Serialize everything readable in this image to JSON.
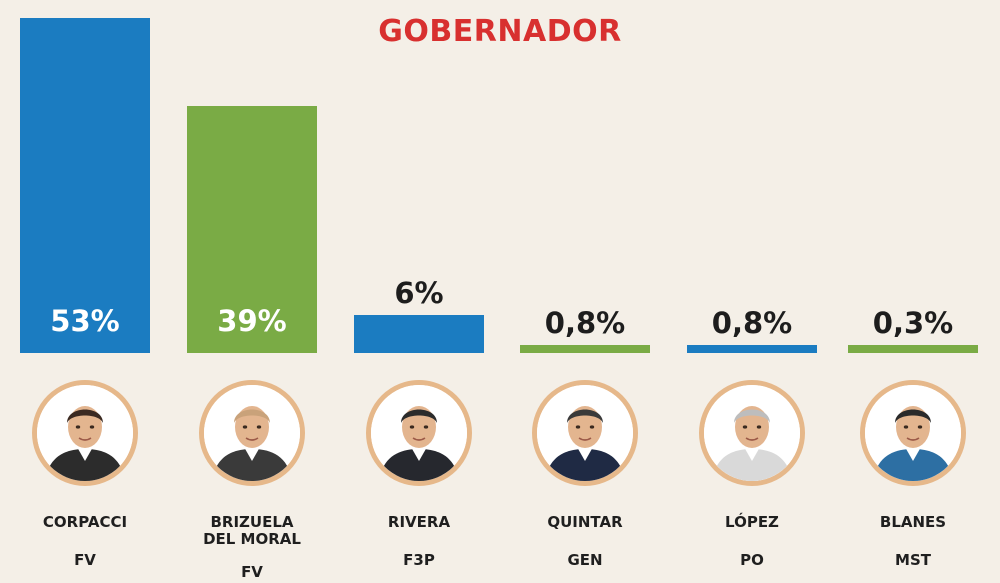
{
  "chart_data": {
    "type": "bar",
    "title": "GOBERNADOR",
    "ylim": [
      0,
      53
    ],
    "categories": [
      "CORPACCI",
      "BRIZUELA DEL MORAL",
      "RIVERA",
      "QUINTAR",
      "LÓPEZ",
      "BLANES"
    ],
    "parties": [
      "FV",
      "FV",
      "F3P",
      "GEN",
      "PO",
      "MST"
    ],
    "values": [
      53,
      39,
      6,
      0.8,
      0.8,
      0.3
    ],
    "value_labels": [
      "53%",
      "39%",
      "6%",
      "0,8%",
      "0,8%",
      "0,3%"
    ],
    "bar_colors": [
      "#1b7cc1",
      "#7aab45",
      "#1b7cc1",
      "#7aab45",
      "#1b7cc1",
      "#7aab45"
    ],
    "name_lines": [
      [
        "CORPACCI"
      ],
      [
        "BRIZUELA",
        "DEL MORAL"
      ],
      [
        "RIVERA"
      ],
      [
        "QUINTAR"
      ],
      [
        "LÓPEZ"
      ],
      [
        "BLANES"
      ]
    ],
    "photos": [
      "candidate-photo",
      "candidate-photo",
      "candidate-photo",
      "candidate-photo",
      "candidate-photo",
      "candidate-photo"
    ]
  }
}
